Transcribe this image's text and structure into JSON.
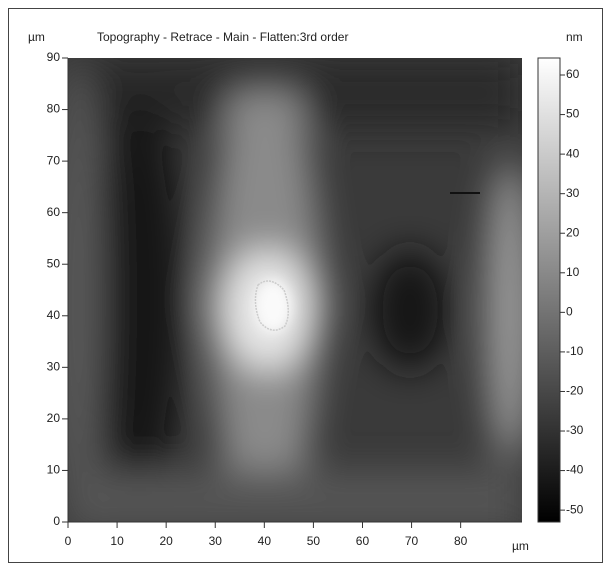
{
  "chart_data": {
    "type": "heatmap",
    "title": "Topography - Retrace - Main - Flatten:3rd order",
    "ylabel": "µm",
    "xlabel": "µm",
    "colorbar_label": "nm",
    "xlim": [
      0,
      92.5
    ],
    "ylim": [
      0,
      90
    ],
    "xticks": [
      0,
      10,
      20,
      30,
      40,
      50,
      60,
      70,
      80
    ],
    "yticks": [
      0,
      10,
      20,
      30,
      40,
      50,
      60,
      70,
      80,
      90
    ],
    "clim": [
      -53,
      64.3
    ],
    "cticks": [
      -50,
      -40,
      -30,
      -20,
      -10,
      0,
      10,
      20,
      30,
      40,
      50,
      60
    ],
    "colormap": [
      "#000000",
      "#ffffff"
    ]
  }
}
